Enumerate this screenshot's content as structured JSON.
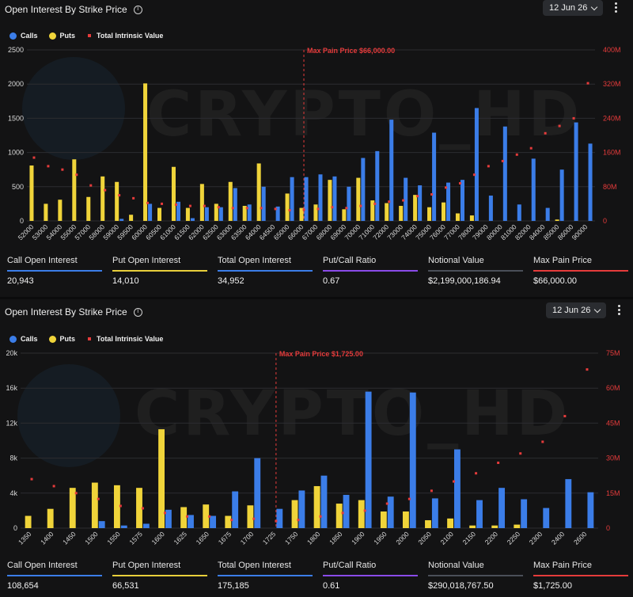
{
  "panels": [
    {
      "title": "Open Interest By Strike Price",
      "date": "12 Jun 26",
      "legend": {
        "calls": "Calls",
        "puts": "Puts",
        "tiv": "Total Intrinsic Value"
      },
      "watermark": "CRYPTO_HD",
      "stats": [
        {
          "label": "Call Open Interest",
          "value": "20,943",
          "color": "#3b7de8"
        },
        {
          "label": "Put Open Interest",
          "value": "14,010",
          "color": "#e8cf3b"
        },
        {
          "label": "Total Open Interest",
          "value": "34,952",
          "color": "#3b7de8"
        },
        {
          "label": "Put/Call Ratio",
          "value": "0.67",
          "color": "#8a4be8"
        },
        {
          "label": "Notional Value",
          "value": "$2,199,000,186.94",
          "color": "#4a4f58"
        },
        {
          "label": "Max Pain Price",
          "value": "$66,000.00",
          "color": "#e53b3b"
        }
      ]
    },
    {
      "title": "Open Interest By Strike Price",
      "date": "12 Jun 26",
      "legend": {
        "calls": "Calls",
        "puts": "Puts",
        "tiv": "Total Intrinsic Value"
      },
      "watermark": "CRYPTO_HD",
      "stats": [
        {
          "label": "Call Open Interest",
          "value": "108,654",
          "color": "#3b7de8"
        },
        {
          "label": "Put Open Interest",
          "value": "66,531",
          "color": "#e8cf3b"
        },
        {
          "label": "Total Open Interest",
          "value": "175,185",
          "color": "#3b7de8"
        },
        {
          "label": "Put/Call Ratio",
          "value": "0.61",
          "color": "#8a4be8"
        },
        {
          "label": "Notional Value",
          "value": "$290,018,767.50",
          "color": "#4a4f58"
        },
        {
          "label": "Max Pain Price",
          "value": "$1,725.00",
          "color": "#e53b3b"
        }
      ]
    }
  ],
  "colors": {
    "calls": "#3b7de8",
    "puts": "#f0d43a",
    "tiv": "#e53b3b",
    "grid": "#2c2d30"
  },
  "chart_data": [
    {
      "type": "bar",
      "categories": [
        "52000",
        "53000",
        "54000",
        "55000",
        "57000",
        "58000",
        "59000",
        "59500",
        "60000",
        "60500",
        "61000",
        "61500",
        "62000",
        "62500",
        "63000",
        "63500",
        "64000",
        "64500",
        "65000",
        "66000",
        "67000",
        "68000",
        "69000",
        "70000",
        "71000",
        "72000",
        "73000",
        "74000",
        "75000",
        "76000",
        "77000",
        "78000",
        "79000",
        "80000",
        "81000",
        "82000",
        "84000",
        "85000",
        "86000",
        "90000"
      ],
      "series": [
        {
          "name": "Calls",
          "values": [
            0,
            0,
            0,
            0,
            0,
            0,
            30,
            0,
            250,
            0,
            280,
            40,
            200,
            200,
            480,
            240,
            500,
            210,
            640,
            640,
            680,
            650,
            500,
            920,
            1020,
            1480,
            630,
            520,
            1290,
            560,
            600,
            1650,
            370,
            1380,
            240,
            910,
            190,
            750,
            1440,
            1130
          ]
        },
        {
          "name": "Puts",
          "values": [
            810,
            250,
            310,
            900,
            350,
            650,
            570,
            90,
            2010,
            190,
            790,
            190,
            540,
            250,
            570,
            220,
            840,
            0,
            400,
            190,
            240,
            600,
            170,
            630,
            300,
            260,
            220,
            380,
            200,
            270,
            110,
            80,
            0,
            0,
            0,
            0,
            0,
            20,
            0,
            0
          ]
        },
        {
          "name": "Total Intrinsic Value",
          "values": [
            148,
            128,
            120,
            108,
            83,
            72,
            60,
            53,
            42,
            40,
            38,
            35,
            35,
            32,
            30,
            30,
            30,
            28,
            25,
            26,
            28,
            32,
            30,
            35,
            40,
            45,
            48,
            58,
            62,
            78,
            88,
            108,
            128,
            140,
            155,
            170,
            205,
            222,
            240,
            322
          ]
        }
      ],
      "ylim": [
        0,
        2500
      ],
      "yticks": [
        0,
        500,
        1000,
        1500,
        2000,
        2500
      ],
      "y2lim": [
        0,
        400
      ],
      "y2ticks": [
        "0",
        "80M",
        "160M",
        "240M",
        "320M",
        "400M"
      ],
      "max_pain_index": 19,
      "max_pain_label": "Max Pain Price $66,000.00"
    },
    {
      "type": "bar",
      "categories": [
        "1350",
        "1400",
        "1450",
        "1500",
        "1550",
        "1575",
        "1600",
        "1625",
        "1650",
        "1675",
        "1700",
        "1725",
        "1750",
        "1800",
        "1850",
        "1900",
        "1950",
        "2000",
        "2050",
        "2100",
        "2150",
        "2200",
        "2250",
        "2300",
        "2400",
        "2600"
      ],
      "series": [
        {
          "name": "Calls",
          "values": [
            0,
            0,
            0,
            800,
            300,
            500,
            2100,
            1500,
            1400,
            4200,
            8000,
            2200,
            4300,
            6000,
            3800,
            15600,
            3600,
            15500,
            3400,
            9000,
            3200,
            4600,
            3300,
            2300,
            5600,
            4100
          ]
        },
        {
          "name": "Puts",
          "values": [
            1400,
            2200,
            4600,
            5200,
            4900,
            4600,
            11300,
            2400,
            2700,
            1400,
            2600,
            0,
            3200,
            4800,
            2800,
            3200,
            1900,
            1900,
            900,
            1100,
            300,
            300,
            400,
            0,
            0,
            0
          ]
        },
        {
          "name": "Total Intrinsic Value",
          "values": [
            21,
            18,
            15,
            12.5,
            9.5,
            8.5,
            6.5,
            5,
            5,
            3.5,
            4,
            3,
            3.5,
            5,
            6.5,
            7.5,
            10.5,
            12.5,
            16,
            20,
            23.5,
            28,
            32,
            37,
            48,
            68
          ]
        }
      ],
      "ylim": [
        0,
        20000
      ],
      "yticks": [
        "0",
        "4k",
        "8k",
        "12k",
        "16k",
        "20k"
      ],
      "y2lim": [
        0,
        75
      ],
      "y2ticks": [
        "0",
        "15M",
        "30M",
        "45M",
        "60M",
        "75M"
      ],
      "max_pain_index": 11,
      "max_pain_label": "Max Pain Price $1,725.00"
    }
  ]
}
